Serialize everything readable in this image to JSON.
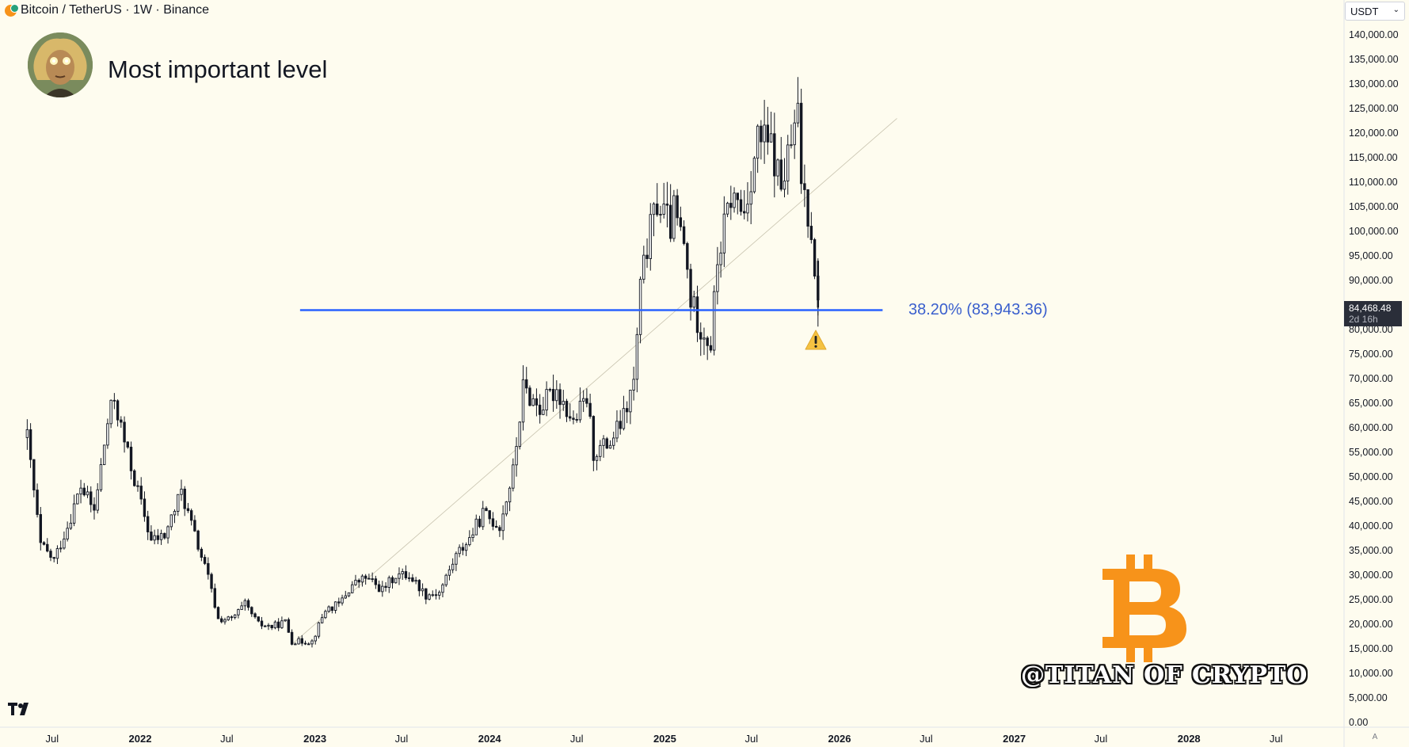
{
  "header": {
    "symbol_line": "Bitcoin / TetherUS · 1W · Binance"
  },
  "idea": {
    "title": "Most important level"
  },
  "currency_selector": {
    "value": "USDT"
  },
  "price_badge": {
    "price": "84,468.48",
    "countdown": "2d 16h"
  },
  "fib_level": {
    "label": "38.20% (83,943.36)",
    "value": 83943.36,
    "color": "#2962ff"
  },
  "watermark": {
    "text": "@TITAN OF CRYPTO"
  },
  "icons": {
    "warning": "warning-icon",
    "bitcoin": "bitcoin-logo",
    "tradingview": "tradingview-logo"
  },
  "colors": {
    "background": "#fefcef",
    "candles": "#131722",
    "fib_line": "#2962ff",
    "bitcoin": "#f7931a"
  },
  "chart_data": {
    "type": "candlestick",
    "timeframe": "1W",
    "y_axis": {
      "min": 0,
      "max": 140000,
      "ticks": [
        "140,000.00",
        "135,000.00",
        "130,000.00",
        "125,000.00",
        "120,000.00",
        "115,000.00",
        "110,000.00",
        "105,000.00",
        "100,000.00",
        "95,000.00",
        "90,000.00",
        "80,000.00",
        "75,000.00",
        "70,000.00",
        "65,000.00",
        "60,000.00",
        "55,000.00",
        "50,000.00",
        "45,000.00",
        "40,000.00",
        "35,000.00",
        "30,000.00",
        "25,000.00",
        "20,000.00",
        "15,000.00",
        "10,000.00",
        "5,000.00",
        "0.00"
      ]
    },
    "x_axis": {
      "labels": [
        {
          "text": "Jul",
          "date": "2021-07-01"
        },
        {
          "text": "2022",
          "date": "2022-01-01",
          "bold": true
        },
        {
          "text": "Jul",
          "date": "2022-07-01"
        },
        {
          "text": "2023",
          "date": "2023-01-01",
          "bold": true
        },
        {
          "text": "Jul",
          "date": "2023-07-01"
        },
        {
          "text": "2024",
          "date": "2024-01-01",
          "bold": true
        },
        {
          "text": "Jul",
          "date": "2024-07-01"
        },
        {
          "text": "2025",
          "date": "2025-01-01",
          "bold": true
        },
        {
          "text": "Jul",
          "date": "2025-07-01"
        },
        {
          "text": "2026",
          "date": "2026-01-01",
          "bold": true
        },
        {
          "text": "Jul",
          "date": "2026-07-01"
        },
        {
          "text": "2027",
          "date": "2027-01-01",
          "bold": true
        },
        {
          "text": "Jul",
          "date": "2027-07-01"
        },
        {
          "text": "2028",
          "date": "2028-01-01",
          "bold": true
        },
        {
          "text": "Jul",
          "date": "2028-07-01"
        }
      ]
    },
    "fib_line": {
      "value": 83943.36,
      "from_date": "2022-12-01",
      "to_date": "2026-04-01"
    },
    "trend_line": {
      "from": {
        "date": "2022-11-15",
        "price": 16000
      },
      "to": {
        "date": "2026-05-01",
        "price": 123000
      }
    },
    "price_points": [
      [
        "2021-05-10",
        58000
      ],
      [
        "2021-06-07",
        36000
      ],
      [
        "2021-07-05",
        33000
      ],
      [
        "2021-08-02",
        40000
      ],
      [
        "2021-08-30",
        48000
      ],
      [
        "2021-09-27",
        43000
      ],
      [
        "2021-10-25",
        61000
      ],
      [
        "2021-11-08",
        66000
      ],
      [
        "2021-11-29",
        57000
      ],
      [
        "2021-12-27",
        47000
      ],
      [
        "2022-01-24",
        37000
      ],
      [
        "2022-02-21",
        38000
      ],
      [
        "2022-03-28",
        47000
      ],
      [
        "2022-04-25",
        38000
      ],
      [
        "2022-05-23",
        29500
      ],
      [
        "2022-06-13",
        21000
      ],
      [
        "2022-07-11",
        21000
      ],
      [
        "2022-08-08",
        24000
      ],
      [
        "2022-09-05",
        20000
      ],
      [
        "2022-10-03",
        19500
      ],
      [
        "2022-10-31",
        20500
      ],
      [
        "2022-11-14",
        16500
      ],
      [
        "2022-12-26",
        16500
      ],
      [
        "2023-01-23",
        23000
      ],
      [
        "2023-02-20",
        24000
      ],
      [
        "2023-03-20",
        28000
      ],
      [
        "2023-04-17",
        29500
      ],
      [
        "2023-05-22",
        27000
      ],
      [
        "2023-06-19",
        30000
      ],
      [
        "2023-07-17",
        30000
      ],
      [
        "2023-08-21",
        26000
      ],
      [
        "2023-09-18",
        26500
      ],
      [
        "2023-10-23",
        34000
      ],
      [
        "2023-11-20",
        37500
      ],
      [
        "2023-12-18",
        42500
      ],
      [
        "2024-01-22",
        40000
      ],
      [
        "2024-02-19",
        51000
      ],
      [
        "2024-03-11",
        68000
      ],
      [
        "2024-04-15",
        64000
      ],
      [
        "2024-05-20",
        68000
      ],
      [
        "2024-06-24",
        61000
      ],
      [
        "2024-07-22",
        66000
      ],
      [
        "2024-08-05",
        55000
      ],
      [
        "2024-09-09",
        57000
      ],
      [
        "2024-10-07",
        62000
      ],
      [
        "2024-10-28",
        69000
      ],
      [
        "2024-11-11",
        88000
      ],
      [
        "2024-11-25",
        97000
      ],
      [
        "2024-12-16",
        106000
      ],
      [
        "2025-01-13",
        101000
      ],
      [
        "2025-01-20",
        104000
      ],
      [
        "2025-02-10",
        97000
      ],
      [
        "2025-02-24",
        86000
      ],
      [
        "2025-03-10",
        82000
      ],
      [
        "2025-04-07",
        77000
      ],
      [
        "2025-04-21",
        94000
      ],
      [
        "2025-05-19",
        107000
      ],
      [
        "2025-06-16",
        104000
      ],
      [
        "2025-07-14",
        119000
      ],
      [
        "2025-08-11",
        117000
      ],
      [
        "2025-09-01",
        109000
      ],
      [
        "2025-10-06",
        123000
      ],
      [
        "2025-10-13",
        111000
      ],
      [
        "2025-11-03",
        101000
      ],
      [
        "2025-11-17",
        84468
      ]
    ]
  }
}
